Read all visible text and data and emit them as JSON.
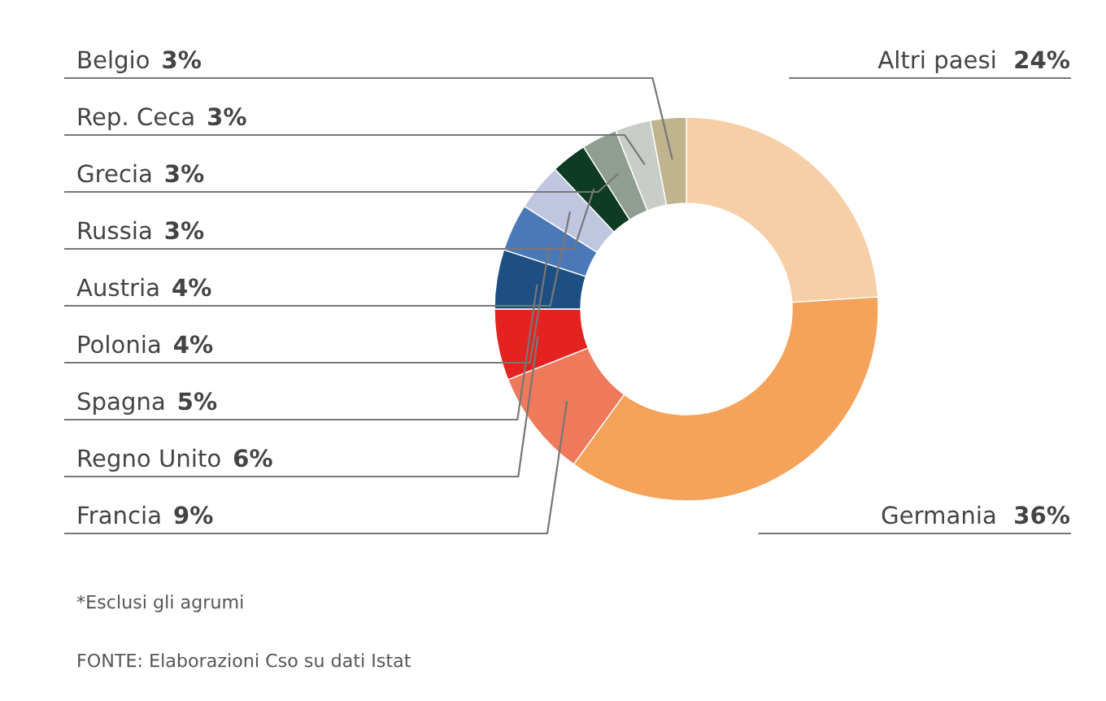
{
  "chart_data": {
    "type": "donut",
    "categories": [
      "Altri paesi",
      "Germania",
      "Francia",
      "Regno Unito",
      "Spagna",
      "Polonia",
      "Austria",
      "Russia",
      "Grecia",
      "Rep. Ceca",
      "Belgio"
    ],
    "values": [
      24,
      36,
      9,
      6,
      5,
      4,
      4,
      3,
      3,
      3,
      3
    ],
    "value_labels": [
      "24%",
      "36%",
      "9%",
      "6%",
      "5%",
      "4%",
      "4%",
      "3%",
      "3%",
      "3%",
      "3%"
    ],
    "colors": [
      "#f6cfa6",
      "#f5a25a",
      "#ef7a5b",
      "#e42320",
      "#1d4f82",
      "#4a78b8",
      "#c0c6e0",
      "#0d3b24",
      "#8f9e90",
      "#c8cdc8",
      "#c0b48f"
    ],
    "annotations": [
      "*Esclusi gli agrumi",
      "FONTE: Elaborazioni Cso su dati Istat"
    ]
  }
}
